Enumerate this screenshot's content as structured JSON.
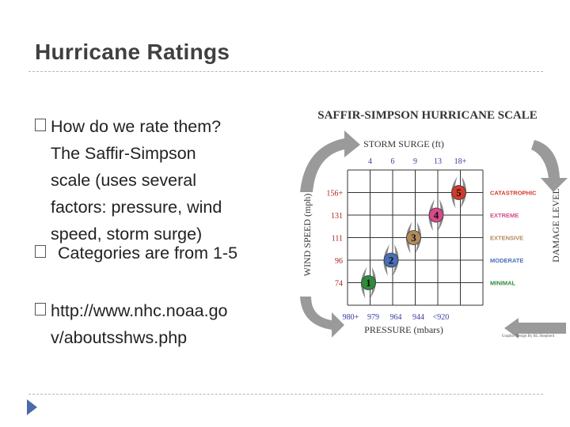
{
  "slide": {
    "title": "Hurricane Ratings",
    "bullets": [
      {
        "lines": [
          "How do we rate them?",
          "The Saffir-Simpson",
          "scale (uses several",
          "factors: pressure, wind",
          "speed, storm surge)"
        ]
      },
      {
        "lines": [
          "Categories are from 1-5"
        ]
      },
      {
        "lines": [
          "http://www.nhc.noaa.go",
          "v/aboutsshws.php"
        ]
      }
    ]
  },
  "diagram": {
    "title": "SAFFIR-SIMPSON HURRICANE SCALE",
    "top_axis_label": "STORM SURGE (ft)",
    "storm_surge_values": [
      "4",
      "6",
      "9",
      "13",
      "18+"
    ],
    "left_axis_label": "WIND SPEED (mph)",
    "wind_speed_values": [
      "156+",
      "131",
      "111",
      "96",
      "74"
    ],
    "bottom_axis_label": "PRESSURE (mbars)",
    "pressure_values": [
      "980+",
      "979",
      "964",
      "944",
      "<920"
    ],
    "right_axis_label": "DAMAGE LEVEL",
    "damage_levels": [
      "CATASTROPHIC",
      "EXTREME",
      "EXTENSIVE",
      "MODERATE",
      "MINIMAL"
    ],
    "categories": [
      "1",
      "2",
      "3",
      "4",
      "5"
    ],
    "credit": "Graphic Design By RL Shepherd",
    "colors": {
      "cat1": "#2e8b3a",
      "cat2": "#4a6fb5",
      "cat3": "#b28a5a",
      "cat4": "#d84a8a",
      "cat5": "#d23a2a",
      "grid": "#333333",
      "arrow": "#9a9a9a"
    }
  }
}
